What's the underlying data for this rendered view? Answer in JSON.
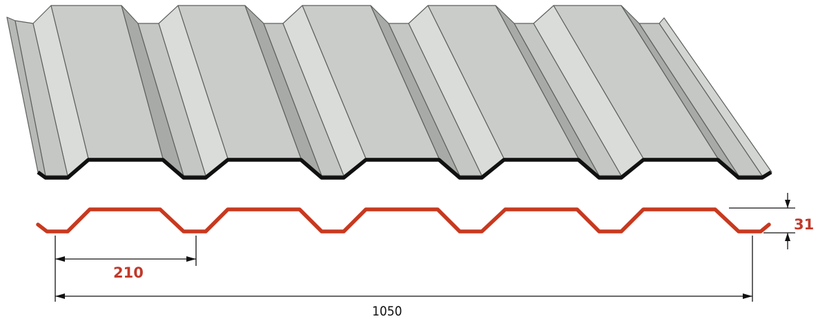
{
  "diagram": {
    "pitch_label": "210",
    "height_label": "31",
    "width_label": "1050"
  },
  "colors": {
    "profile_line": "#c8391f",
    "dimension_red": "#c0392b",
    "sheet_crest": "#c9ccc8",
    "sheet_web_light": "#d9dcd9",
    "sheet_web_dark": "#a7aaa6",
    "sheet_edge": "#111111"
  }
}
